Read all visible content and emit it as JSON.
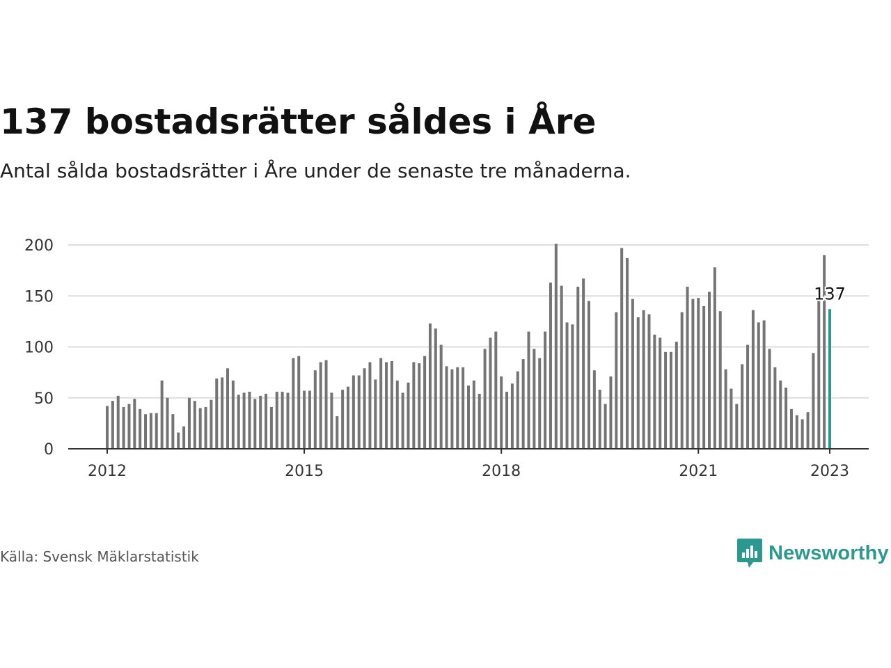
{
  "header": {
    "title": "137 bostadsrätter såldes i Åre",
    "subtitle": "Antal sålda bostadsrätter i Åre under de senaste tre månaderna."
  },
  "footer": {
    "source": "Källa: Svensk Mäklarstatistik",
    "brand": "Newsworthy"
  },
  "colors": {
    "bar": "#747474",
    "highlight": "#2a9a91",
    "grid": "#dddddd",
    "axis": "#333333"
  },
  "chart_data": {
    "type": "bar",
    "start": "2012-01",
    "frequency": "monthly",
    "ylim": [
      0,
      200
    ],
    "y_ticks": [
      0,
      50,
      100,
      150,
      200
    ],
    "x_tick_labels": [
      "2012",
      "2015",
      "2018",
      "2021",
      "2023"
    ],
    "grid": true,
    "highlight_last": true,
    "last_label": "137",
    "values": [
      42,
      47,
      52,
      41,
      44,
      49,
      39,
      34,
      35,
      35,
      67,
      50,
      34,
      16,
      22,
      50,
      47,
      40,
      41,
      48,
      69,
      70,
      79,
      67,
      53,
      55,
      56,
      49,
      52,
      54,
      41,
      56,
      56,
      55,
      89,
      91,
      57,
      57,
      77,
      85,
      87,
      55,
      32,
      58,
      61,
      72,
      72,
      79,
      85,
      68,
      89,
      85,
      86,
      67,
      55,
      65,
      85,
      84,
      91,
      123,
      118,
      102,
      81,
      78,
      80,
      80,
      62,
      67,
      54,
      98,
      109,
      115,
      71,
      56,
      64,
      76,
      88,
      115,
      98,
      89,
      115,
      163,
      201,
      160,
      124,
      122,
      159,
      167,
      145,
      77,
      58,
      44,
      71,
      134,
      197,
      187,
      147,
      129,
      136,
      132,
      112,
      109,
      95,
      95,
      105,
      134,
      159,
      147,
      148,
      140,
      154,
      178,
      135,
      78,
      59,
      44,
      83,
      102,
      136,
      124,
      126,
      98,
      80,
      67,
      60,
      39,
      33,
      29,
      36,
      94,
      145,
      190,
      137
    ]
  }
}
